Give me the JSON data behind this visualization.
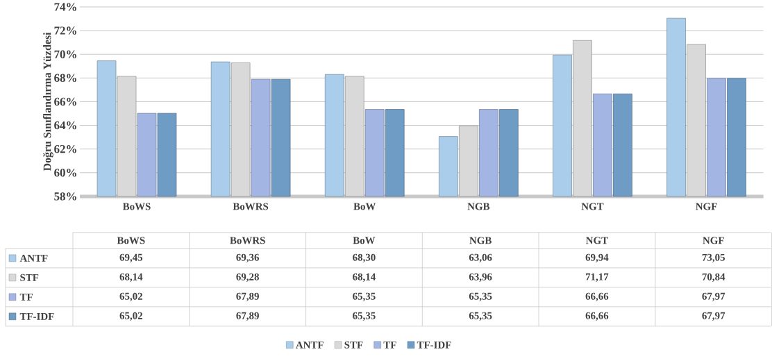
{
  "chart_data": {
    "type": "bar",
    "ylabel": "Doğru Sınıflandırma Yüzdesi",
    "categories": [
      "BoWS",
      "BoWRS",
      "BoW",
      "NGB",
      "NGT",
      "NGF"
    ],
    "series": [
      {
        "name": "ANTF",
        "color": "#a9cdea",
        "values": [
          69.45,
          69.36,
          68.3,
          63.06,
          69.94,
          73.05
        ],
        "value_labels": [
          "69,45",
          "69,36",
          "68,30",
          "63,06",
          "69,94",
          "73,05"
        ]
      },
      {
        "name": "STF",
        "color": "#d9d9d9",
        "values": [
          68.14,
          69.28,
          68.14,
          63.96,
          71.17,
          70.84
        ],
        "value_labels": [
          "68,14",
          "69,28",
          "68,14",
          "63,96",
          "71,17",
          "70,84"
        ]
      },
      {
        "name": "TF",
        "color": "#a3b5e3",
        "values": [
          65.02,
          67.89,
          65.35,
          65.35,
          66.66,
          67.97
        ],
        "value_labels": [
          "65,02",
          "67,89",
          "65,35",
          "65,35",
          "66,66",
          "67,97"
        ]
      },
      {
        "name": "TF-IDF",
        "color": "#6f9cc4",
        "values": [
          65.02,
          67.89,
          65.35,
          65.35,
          66.66,
          67.97
        ],
        "value_labels": [
          "65,02",
          "67,89",
          "65,35",
          "65,35",
          "66,66",
          "67,97"
        ]
      }
    ],
    "ylim": [
      58,
      74
    ],
    "yticks": [
      {
        "value": 58,
        "label": "58%"
      },
      {
        "value": 60,
        "label": "60%"
      },
      {
        "value": 62,
        "label": "62%"
      },
      {
        "value": 64,
        "label": "64%"
      },
      {
        "value": 66,
        "label": "66%"
      },
      {
        "value": 68,
        "label": "68%"
      },
      {
        "value": 70,
        "label": "70%"
      },
      {
        "value": 72,
        "label": "72%"
      },
      {
        "value": 74,
        "label": "74%"
      }
    ],
    "grid": "y",
    "legend": "bottom"
  }
}
